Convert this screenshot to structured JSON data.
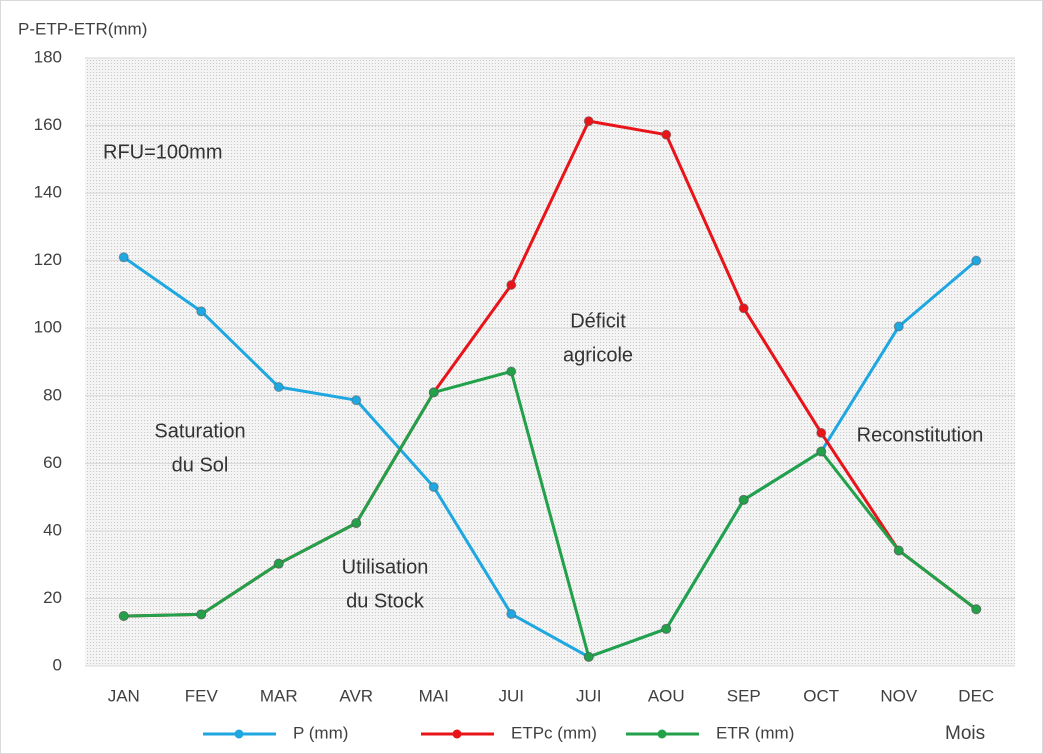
{
  "chart_data": {
    "type": "line",
    "y_label": "P-ETP-ETR(mm)",
    "x_label": "Mois",
    "categories": [
      "JAN",
      "FEV",
      "MAR",
      "AVR",
      "MAI",
      "JUI",
      "JUI",
      "AOU",
      "SEP",
      "OCT",
      "NOV",
      "DEC"
    ],
    "series": [
      {
        "name": "P (mm)",
        "color": "#1ea7e0",
        "values": [
          121,
          105,
          82.6,
          78.7,
          53,
          15.4,
          2.7,
          11,
          49.2,
          63.5,
          100.5,
          120
        ]
      },
      {
        "name": "ETPc (mm)",
        "color": "#e8141a",
        "values": [
          14.8,
          15.3,
          30.3,
          42.3,
          81,
          112.8,
          161.3,
          157.3,
          105.9,
          69,
          34.2,
          16.8
        ]
      },
      {
        "name": "ETR (mm)",
        "color": "#22a04a",
        "values": [
          14.8,
          15.3,
          30.3,
          42.3,
          81,
          87.2,
          2.7,
          11,
          49.2,
          63.5,
          34.2,
          16.8
        ]
      }
    ],
    "ylim": [
      0,
      180
    ],
    "yticks": [
      0,
      20,
      40,
      60,
      80,
      100,
      120,
      140,
      160,
      180
    ],
    "grid": true,
    "legend": "bottom",
    "annotations": [
      [
        "RFU=100mm"
      ],
      [
        "Saturation",
        "du Sol"
      ],
      [
        "Utilisation",
        "du Stock"
      ],
      [
        "Déficit",
        "agricole"
      ],
      [
        "Reconstitution"
      ]
    ]
  }
}
